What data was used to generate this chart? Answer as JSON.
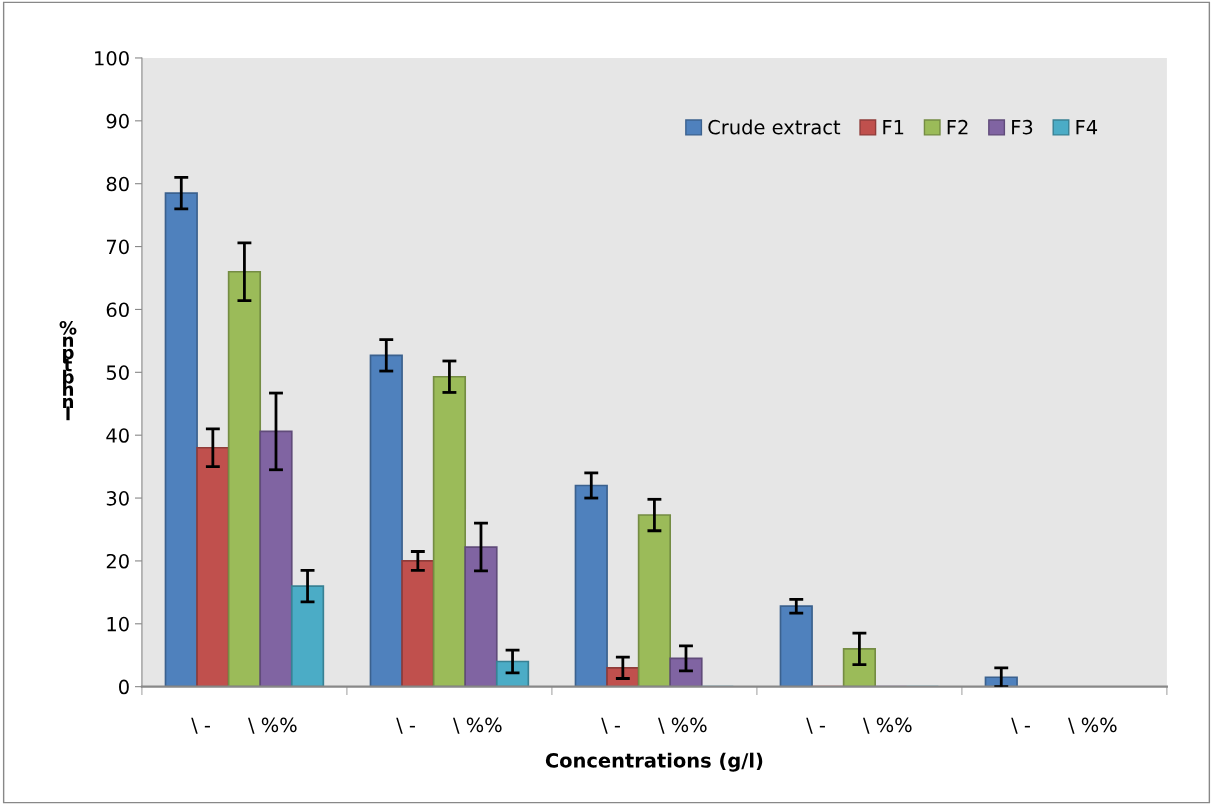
{
  "chart_data": {
    "type": "bar",
    "xlabel": "Concentrations (g/l)",
    "ylabel": "%\nn\np\nt\nb\nh\nn\nl",
    "categories": [
      "\\ -      \\ %%",
      "\\ -      \\ %%",
      "\\ -      \\ %%",
      "\\ -      \\ %%",
      "\\ -      \\ %%"
    ],
    "series": [
      {
        "name": "Crude extract",
        "color": "#4f81bd",
        "values": [
          78.5,
          52.7,
          32,
          12.8,
          1.5
        ],
        "errors": [
          2.5,
          2.5,
          2,
          1.1,
          1.5
        ]
      },
      {
        "name": "F1",
        "color": "#c0504d",
        "values": [
          38,
          20,
          3,
          0,
          null
        ],
        "errors": [
          3,
          1.5,
          1.7,
          null,
          null
        ]
      },
      {
        "name": "F2",
        "color": "#9bbb59",
        "values": [
          66,
          49.3,
          27.3,
          6,
          null
        ],
        "errors": [
          4.6,
          2.5,
          2.5,
          2.5,
          null
        ]
      },
      {
        "name": "F3",
        "color": "#8064a2",
        "values": [
          40.6,
          22.2,
          4.5,
          0,
          null
        ],
        "errors": [
          6.1,
          3.8,
          2,
          null,
          null
        ]
      },
      {
        "name": "F4",
        "color": "#4bacc6",
        "values": [
          16,
          4,
          0,
          0,
          null
        ],
        "errors": [
          2.5,
          1.8,
          null,
          null,
          null
        ]
      }
    ],
    "ylim": [
      0,
      100
    ],
    "yticks": [
      0,
      10,
      20,
      30,
      40,
      50,
      60,
      70,
      80,
      90,
      100
    ],
    "grid": false,
    "legend": "top right"
  }
}
